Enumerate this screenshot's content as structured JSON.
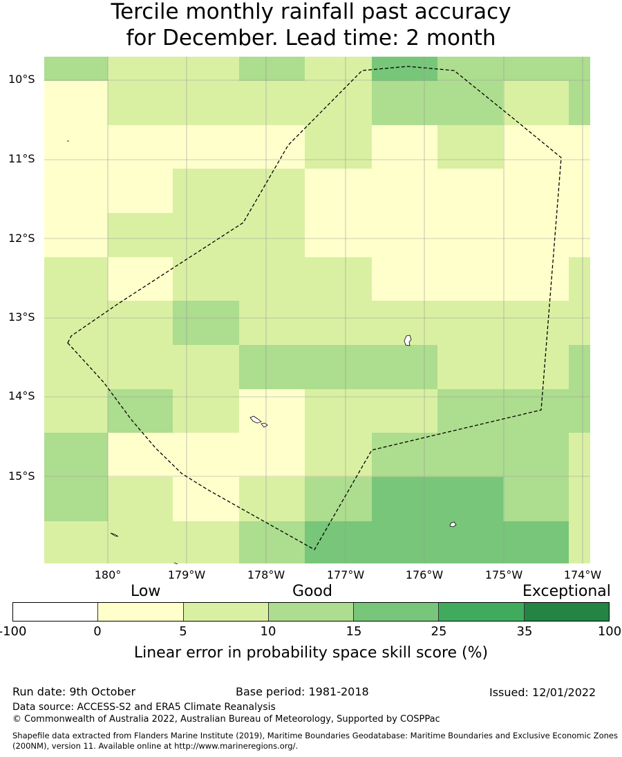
{
  "title": {
    "line1": "Tercile monthly rainfall past accuracy",
    "line2": "for December. Lead time: 2 month"
  },
  "map": {
    "lat_labels": [
      "10°S",
      "11°S",
      "12°S",
      "13°S",
      "14°S",
      "15°S"
    ],
    "lon_labels": [
      "180°",
      "179°W",
      "178°W",
      "177°W",
      "176°W",
      "175°W",
      "174°W"
    ],
    "skill_grid_category_index": [
      [
        3,
        2,
        2,
        3,
        2,
        4,
        3,
        3,
        3
      ],
      [
        1,
        2,
        2,
        2,
        2,
        3,
        3,
        2,
        3
      ],
      [
        1,
        1,
        1,
        1,
        2,
        1,
        2,
        1,
        1
      ],
      [
        1,
        1,
        2,
        2,
        1,
        1,
        1,
        1,
        1
      ],
      [
        1,
        2,
        2,
        2,
        1,
        1,
        1,
        1,
        1
      ],
      [
        2,
        1,
        2,
        2,
        2,
        1,
        1,
        1,
        2
      ],
      [
        2,
        2,
        3,
        2,
        2,
        2,
        2,
        2,
        2
      ],
      [
        2,
        2,
        2,
        3,
        3,
        3,
        2,
        2,
        3
      ],
      [
        2,
        3,
        2,
        1,
        2,
        2,
        3,
        3,
        3
      ],
      [
        3,
        1,
        1,
        1,
        2,
        3,
        3,
        3,
        2
      ],
      [
        3,
        2,
        1,
        2,
        3,
        4,
        4,
        3,
        2
      ],
      [
        2,
        2,
        2,
        3,
        4,
        4,
        4,
        4,
        2
      ]
    ],
    "boundary_style": "dashed",
    "colors": {
      "grid_line": "#9a9a9a",
      "boundary": "#000000",
      "land": "#ffffff"
    }
  },
  "legend": {
    "categories": [
      "Low",
      "Good",
      "Exceptional"
    ],
    "ticks": [
      "-100",
      "0",
      "5",
      "10",
      "15",
      "25",
      "35",
      "100"
    ],
    "colors": [
      "#ffffff",
      "#ffffcc",
      "#d9f0a3",
      "#addd8e",
      "#78c679",
      "#41ab5d",
      "#238443"
    ],
    "label": "Linear error in probability space skill score (%)"
  },
  "footer": {
    "run_date": "Run date: 9th October",
    "base_period": "Base period: 1981-2018",
    "issued": "Issued: 12/01/2022",
    "data_source": "Data source: ACCESS-S2 and ERA5 Climate Reanalysis",
    "copyright": "© Commonwealth of Australia 2022, Australian Bureau of Meteorology, Supported by COSPPac",
    "shapefile": "Shapefile data extracted from Flanders Marine Institute (2019), Maritime Boundaries Geodatabase: Maritime Boundaries and Exclusive Economic Zones (200NM), version 11. Available online at http://www.marineregions.org/."
  }
}
